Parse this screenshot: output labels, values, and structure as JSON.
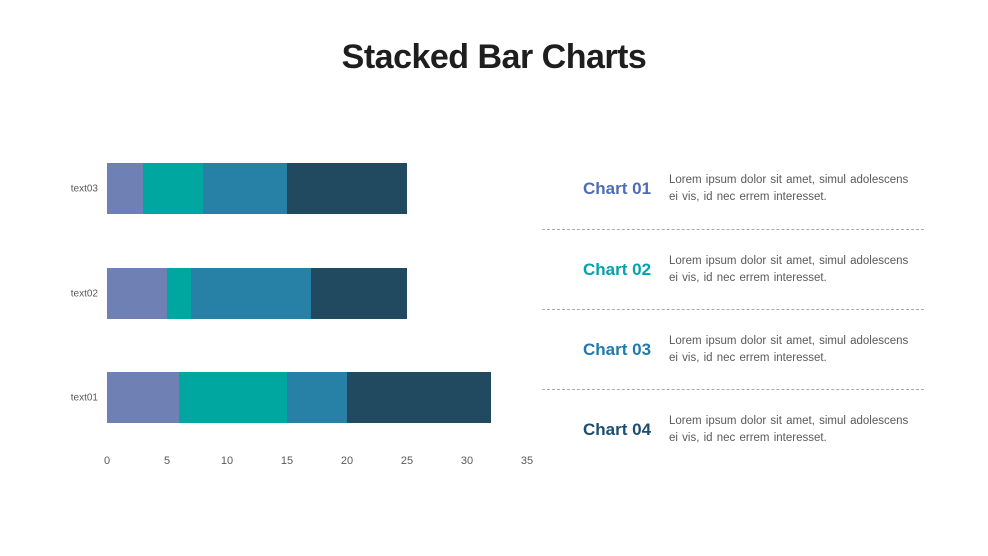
{
  "slide": {
    "title": "Stacked Bar Charts",
    "background_color": "#ffffff",
    "title_color": "#1e1e1e"
  },
  "chart_data": {
    "type": "bar",
    "orientation": "horizontal",
    "stacked": true,
    "title": "",
    "xlabel": "",
    "ylabel": "",
    "categories": [
      "text01",
      "text02",
      "text03"
    ],
    "series": [
      {
        "name": "Chart 01",
        "color": "#6f80b5",
        "values": [
          6,
          5,
          3
        ]
      },
      {
        "name": "Chart 02",
        "color": "#00a7a0",
        "values": [
          9,
          2,
          5
        ]
      },
      {
        "name": "Chart 03",
        "color": "#2781a6",
        "values": [
          5,
          10,
          7
        ]
      },
      {
        "name": "Chart 04",
        "color": "#21495f",
        "values": [
          12,
          8,
          10
        ]
      }
    ],
    "totals": [
      32,
      25,
      25
    ],
    "x_ticks": [
      0,
      5,
      10,
      15,
      20,
      25,
      30,
      35
    ],
    "xlim": [
      0,
      35
    ],
    "grid": false,
    "axis_text_color": "#595959",
    "legend_position": "right-panel"
  },
  "legend": {
    "items": [
      {
        "label": "Chart 01",
        "color": "#4f6cb8",
        "description": "Lorem ipsum dolor sit amet, simul adolescens ei vis, id nec errem interesset."
      },
      {
        "label": "Chart 02",
        "color": "#00a3ae",
        "description": "Lorem ipsum dolor sit amet, simul adolescens ei vis, id nec errem interesset."
      },
      {
        "label": "Chart 03",
        "color": "#1f7aad",
        "description": "Lorem ipsum dolor sit amet, simul adolescens ei vis, id nec errem interesset."
      },
      {
        "label": "Chart 04",
        "color": "#1d4d70",
        "description": "Lorem ipsum dolor sit amet, simul adolescens ei vis, id nec errem interesset."
      }
    ],
    "divider_color": "#aaaaaa",
    "description_color": "#595959"
  }
}
